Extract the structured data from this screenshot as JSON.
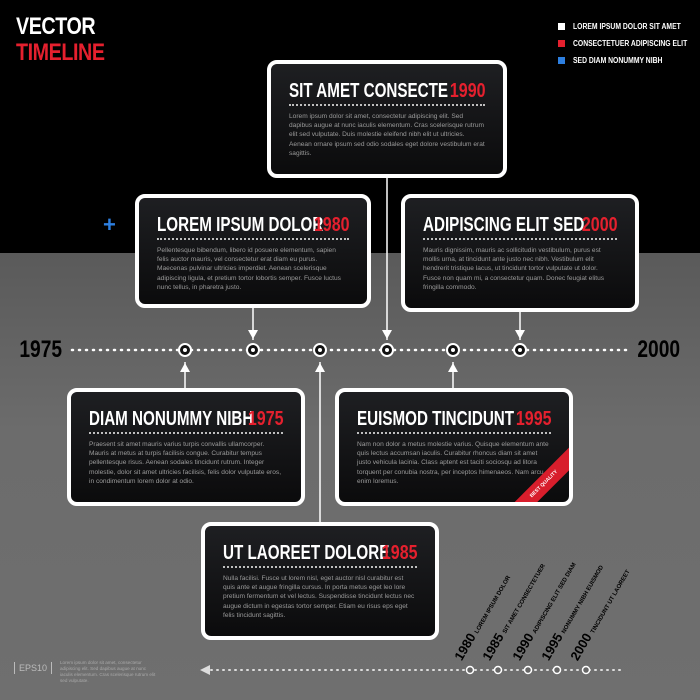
{
  "title": {
    "line1": "VECTOR",
    "line2": "TIMELINE"
  },
  "legend": [
    {
      "label": "LOREM IPSUM DOLOR SIT AMET",
      "color": "#ffffff"
    },
    {
      "label": "CONSECTETUER ADIPISCING ELIT",
      "color": "#e5202e"
    },
    {
      "label": "SED DIAM NONUMMY NIBH",
      "color": "#2d7fe0"
    }
  ],
  "axis": {
    "start": "1975",
    "end": "2000"
  },
  "plus_icon": "+",
  "cards": [
    {
      "title": "SIT AMET CONSECTE",
      "year": "1990",
      "body": "Lorem ipsum dolor sit amet, consectetur adipiscing elit. Sed dapibus augue at nunc iaculis elementum. Cras scelerisque rutrum elit sed vulputate. Duis molestie eleifend nibh elit ut ultricies. Aenean ornare ipsum sed odio sodales eget dolore vestibulum erat sagittis."
    },
    {
      "title": "LOREM IPSUM DOLOR",
      "year": "1980",
      "body": "Pellentesque bibendum, libero id posuere elementum, sapien felis auctor mauris, vel consectetur erat diam eu purus. Maecenas pulvinar ultricies imperdiet. Aenean scelerisque adipiscing ligula, et pretium tortor lobortis semper. Fusce luctus nunc tellus, in pharetra justo."
    },
    {
      "title": "ADIPISCING ELIT SED",
      "year": "2000",
      "body": "Mauris dignissim, mauris ac sollicitudin vestibulum, purus est mollis urna, at tincidunt ante justo nec nibh. Vestibulum elit hendrerit tristique lacus, ut tincidunt tortor vulputate ut dolor. Fusce non quam mi, a consectetur quam. Donec feugiat elitus fringilla commodo."
    },
    {
      "title": "DIAM NONUMMY NIBH",
      "year": "1975",
      "body": "Praesent sit amet mauris varius turpis convallis ullamcorper. Mauris at metus at turpis facilisis congue. Curabitur tempus pellentesque risus. Aenean sodales tincidunt rutrum. Integer molestie, dolor sit amet ultricies facilisis, felis dolor vulputate eros, in condimentum lorem dolor at odio."
    },
    {
      "title": "EUISMOD TINCIDUNT",
      "year": "1995",
      "body": "Nam non dolor a metus molestie varius. Quisque elementum ante quis lectus accumsan iaculis. Curabitur rhoncus diam sit amet justo vehicula lacinia. Class aptent est taciti sociosqu ad litora torquent per conubia nostra, per inceptos himenaeos. Nam arcu enim loremus."
    },
    {
      "title": "UT LAOREET DOLORE",
      "year": "1985",
      "body": "Nulla facilisi. Fusce ut lorem nisl, eget auctor nisl curabitur est quis ante et augue fringilla cursus. In porta metus eget leo lore pretium fermentum et vel lectus. Suspendisse tincidunt lectus nec augue dictum in egestas tortor semper. Etiam eu risus eps eget felis tincidunt sagittis."
    }
  ],
  "ribbon": "BEST QUALITY",
  "footer": {
    "eps": "EPS10",
    "text": "Lorem ipsum dolor sit amet, consectetur adipiscing elit. Sed dapibus augue at nunc iaculis elementum. Cras scelerisque rutrum elit sed vulputate."
  },
  "mini_timeline": [
    {
      "year": "1980",
      "label": "LOREM IPSUM DOLOR"
    },
    {
      "year": "1985",
      "label": "SIT AMET CONSECTETUER"
    },
    {
      "year": "1990",
      "label": "ADIPISCING ELIT SED DIAM"
    },
    {
      "year": "1995",
      "label": "NONUMMY NIBH EUISMOD"
    },
    {
      "year": "2000",
      "label": "TINCIDUNT UT LAOREET"
    }
  ]
}
